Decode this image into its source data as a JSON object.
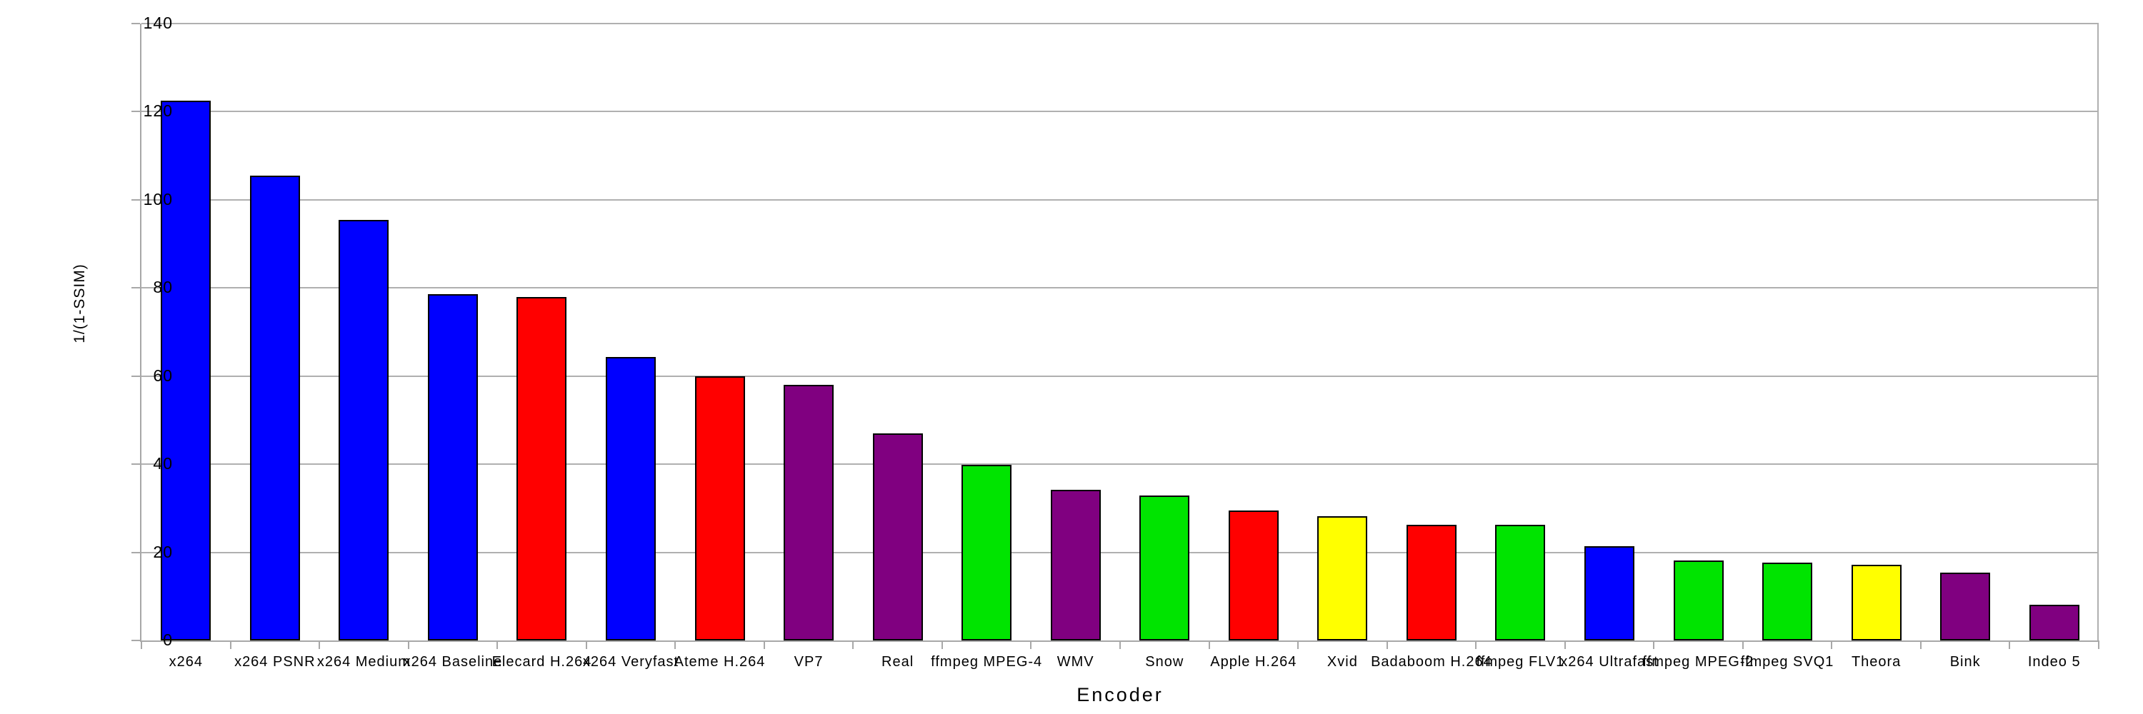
{
  "chart_data": {
    "type": "bar",
    "title": "",
    "xlabel": "Encoder",
    "ylabel": "1/(1-SSIM)",
    "ylim": [
      0,
      140
    ],
    "ytick_step": 20,
    "yticks": [
      0,
      20,
      40,
      60,
      80,
      100,
      120,
      140
    ],
    "grid": true,
    "legend": "none",
    "categories": [
      "x264",
      "x264 PSNR",
      "x264 Medium",
      "x264 Baseline",
      "Elecard H.264",
      "x264 Veryfast",
      "Ateme H.264",
      "VP7",
      "Real",
      "ffmpeg MPEG-4",
      "WMV",
      "Snow",
      "Apple H.264",
      "Xvid",
      "Badaboom H.264",
      "ffmpeg FLV1",
      "x264 Ultrafast",
      "ffmpeg MPEG-2",
      "ffmpeg SVQ1",
      "Theora",
      "Bink",
      "Indeo 5"
    ],
    "values": [
      122.5,
      105.5,
      95.5,
      78.6,
      78.0,
      64.4,
      60.0,
      58.0,
      47.0,
      39.8,
      34.2,
      32.9,
      29.5,
      28.2,
      26.3,
      26.2,
      21.4,
      18.1,
      17.7,
      17.2,
      15.4,
      8.1
    ],
    "bar_colors": [
      "blue",
      "blue",
      "blue",
      "blue",
      "red",
      "blue",
      "red",
      "purple",
      "purple",
      "green",
      "purple",
      "green",
      "red",
      "yellow",
      "red",
      "green",
      "blue",
      "green",
      "green",
      "yellow",
      "purple",
      "purple"
    ],
    "palette": {
      "blue": "#0000ff",
      "red": "#ff0000",
      "purple": "#800080",
      "green": "#00e400",
      "yellow": "#ffff00"
    },
    "bar_border_color": "#000000",
    "gridline_color": "#b0b0b0",
    "axis_color": "#a8a8a8",
    "background_color": "#ffffff"
  }
}
